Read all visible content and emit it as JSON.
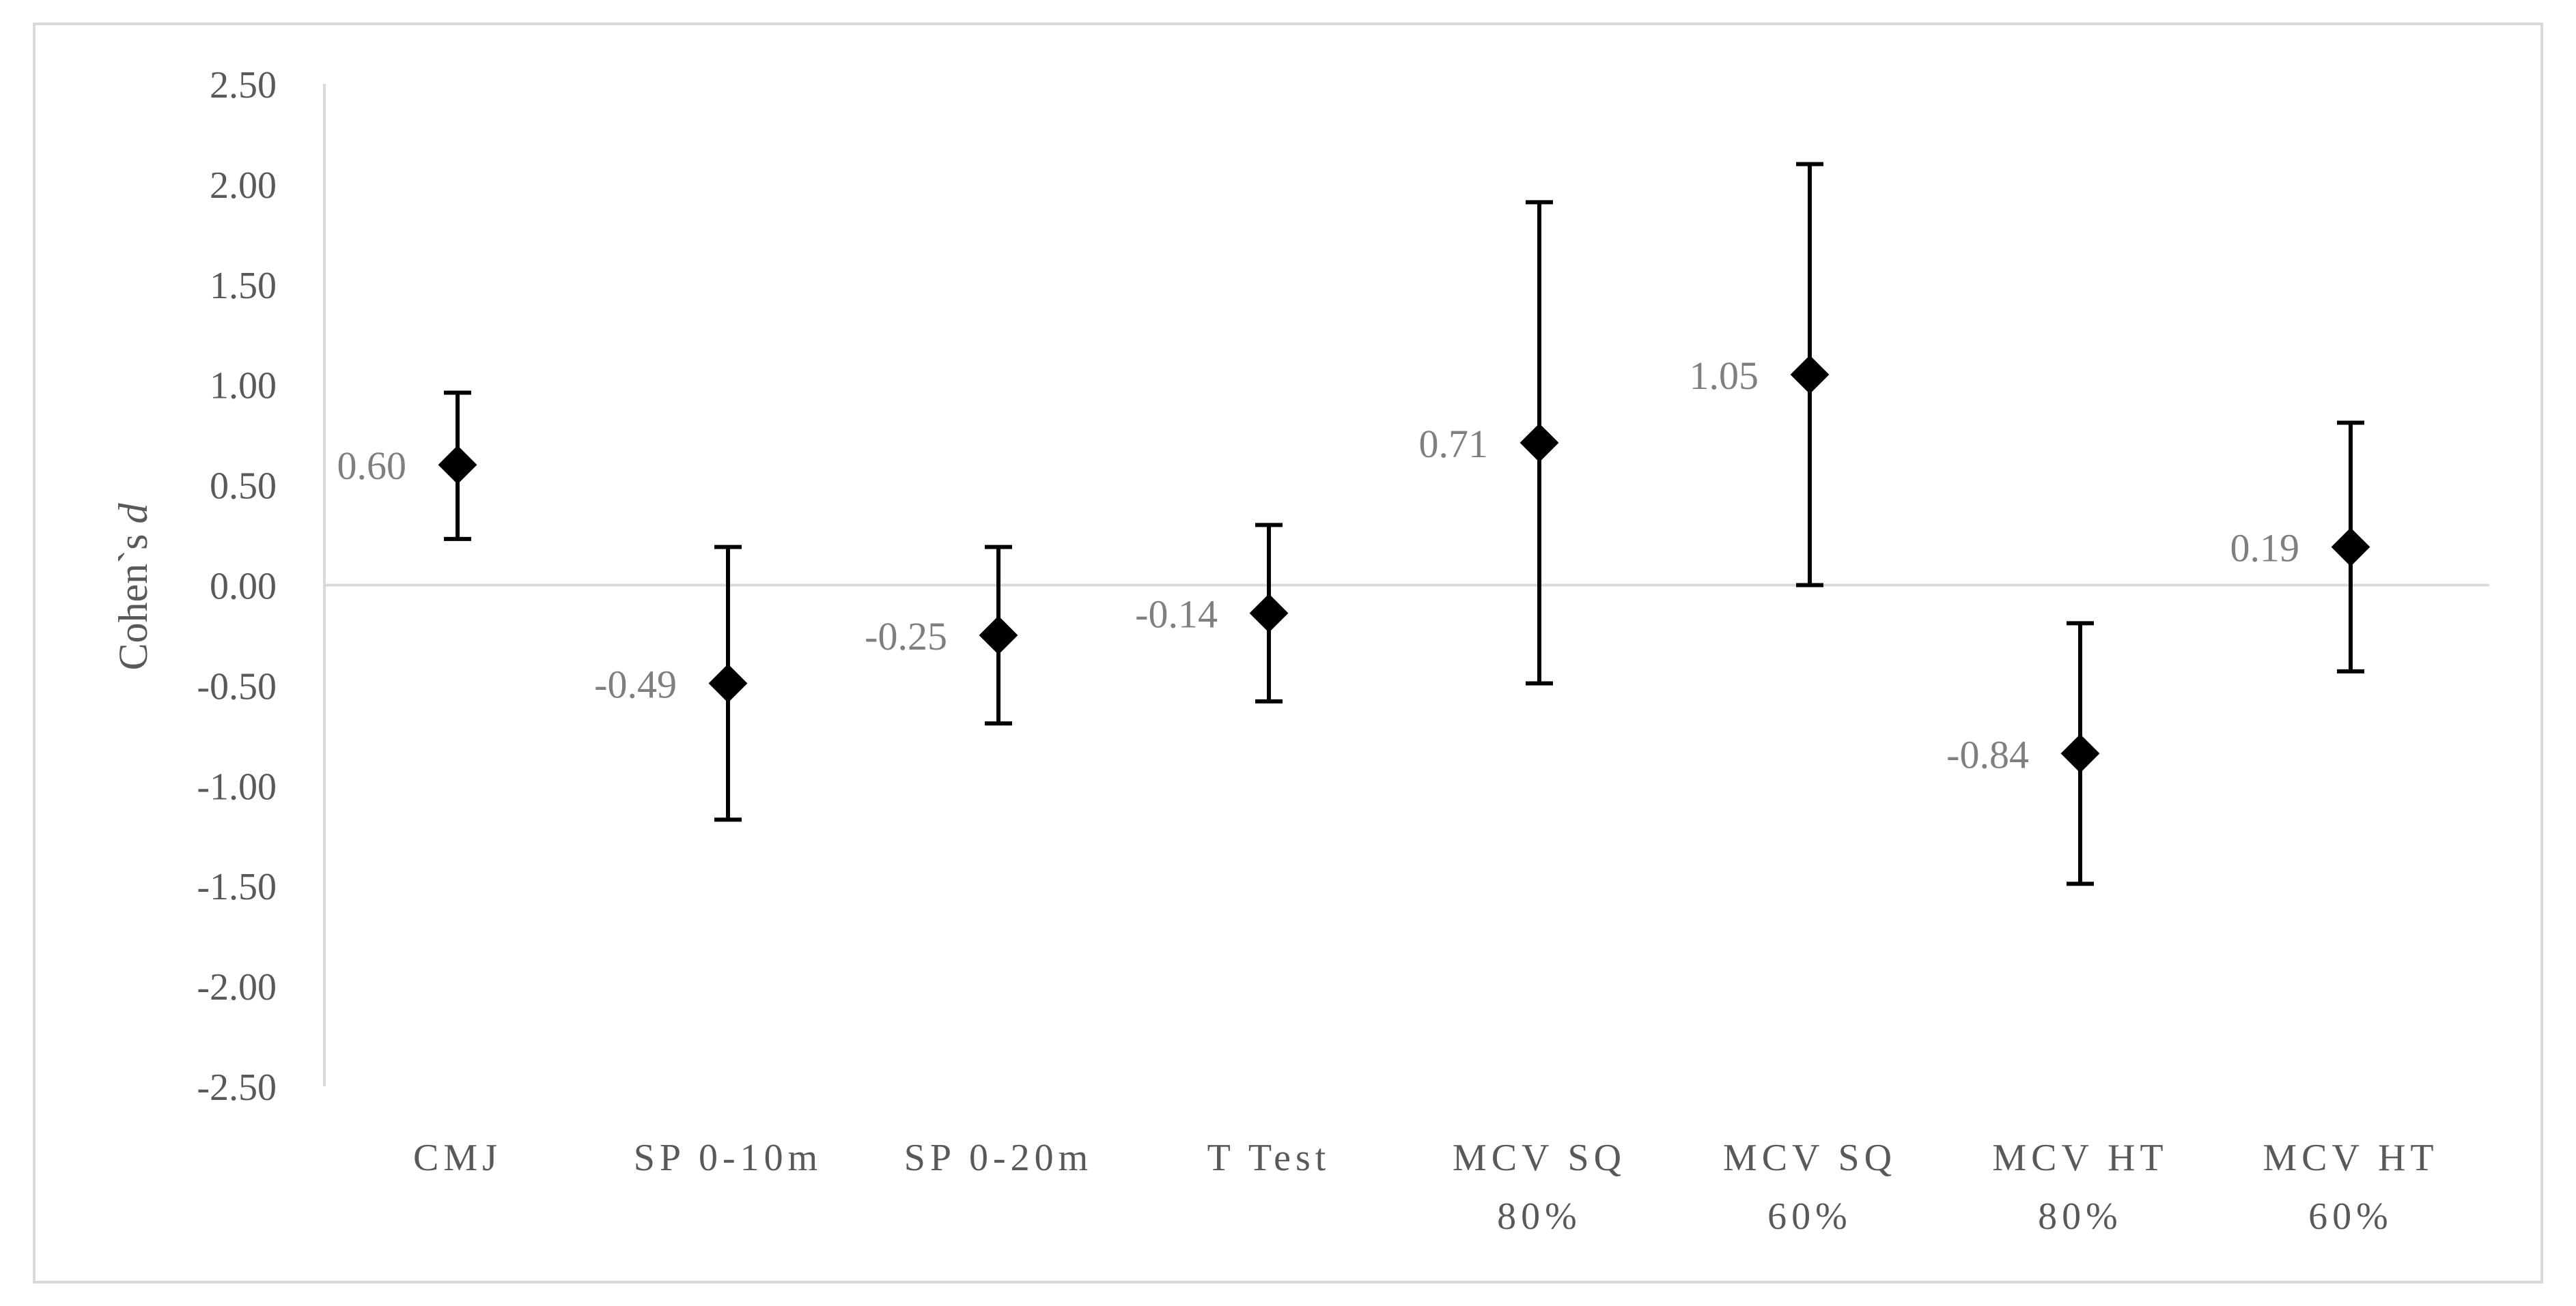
{
  "chart_data": {
    "type": "scatter",
    "title": "",
    "xlabel": "",
    "ylabel": "Cohen`s",
    "ylabel_italic": "d",
    "ylim": [
      -2.5,
      2.5
    ],
    "yticks": [
      2.5,
      2.0,
      1.5,
      1.0,
      0.5,
      0.0,
      -0.5,
      -1.0,
      -1.5,
      -2.0,
      -2.5
    ],
    "ytick_labels": [
      "2.50",
      "2.00",
      "1.50",
      "1.00",
      "0.50",
      "0.00",
      "-0.50",
      "-1.00",
      "-1.50",
      "-2.00",
      "-2.50"
    ],
    "grid": false,
    "legend": "none",
    "marker": "diamond",
    "marker_color": "#000000",
    "categories": [
      {
        "line1": "CMJ",
        "line2": ""
      },
      {
        "line1": "SP 0-10m",
        "line2": ""
      },
      {
        "line1": "SP 0-20m",
        "line2": ""
      },
      {
        "line1": "T Test",
        "line2": ""
      },
      {
        "line1": "MCV SQ",
        "line2": "80%"
      },
      {
        "line1": "MCV SQ",
        "line2": "60%"
      },
      {
        "line1": "MCV HT",
        "line2": "80%"
      },
      {
        "line1": "MCV HT",
        "line2": "60%"
      }
    ],
    "values": [
      0.6,
      -0.49,
      -0.25,
      -0.14,
      0.71,
      1.05,
      -0.84,
      0.19
    ],
    "value_labels": [
      "0.60",
      "-0.49",
      "-0.25",
      "-0.14",
      "0.71",
      "1.05",
      "-0.84",
      "0.19"
    ],
    "ci_upper": [
      0.96,
      0.19,
      0.19,
      0.3,
      1.91,
      2.1,
      -0.19,
      0.81
    ],
    "ci_lower": [
      0.23,
      -1.17,
      -0.69,
      -0.58,
      -0.49,
      0.0,
      -1.49,
      -0.43
    ]
  }
}
